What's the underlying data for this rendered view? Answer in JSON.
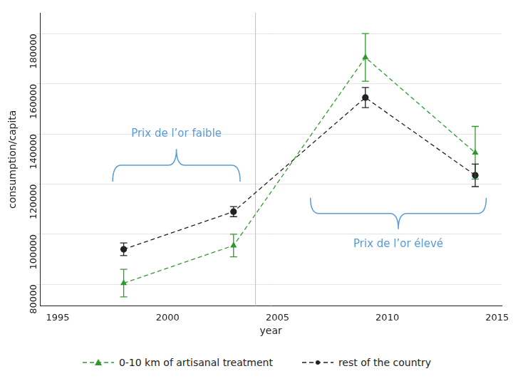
{
  "chart_data": {
    "type": "line",
    "x_label": "year",
    "y_label": "consumption/capita",
    "x": [
      1998,
      2003,
      2009,
      2014
    ],
    "series": [
      {
        "name": "0-10 km of artisanal treatment",
        "color": "#2e9a2e",
        "marker": "triangle",
        "line_style": "dashed",
        "values": [
          80500,
          95500,
          170500,
          132500
        ],
        "errors": [
          5500,
          4500,
          9500,
          10500
        ]
      },
      {
        "name": "rest of the country",
        "color": "#222222",
        "marker": "circle",
        "line_style": "dashed",
        "values": [
          94000,
          109000,
          154500,
          123500
        ],
        "errors": [
          2500,
          2000,
          4000,
          4500
        ]
      }
    ],
    "xlim": [
      1994.2,
      2015.2
    ],
    "xticks": [
      1995,
      2000,
      2005,
      2010,
      2015
    ],
    "ylim": [
      71400,
      188300
    ],
    "yticks": [
      80000,
      100000,
      120000,
      140000,
      160000,
      180000
    ],
    "grid": true,
    "legend": "bottom",
    "vline": 2004,
    "annotations": [
      {
        "text": "Prix de l’or faible",
        "x": [
          1997.5,
          2003.3
        ],
        "y": [
          121000,
          134000
        ]
      },
      {
        "text": "Prix de l’or élevé",
        "x": [
          2006.5,
          2014.5
        ],
        "y": [
          114500,
          102000
        ]
      }
    ]
  }
}
